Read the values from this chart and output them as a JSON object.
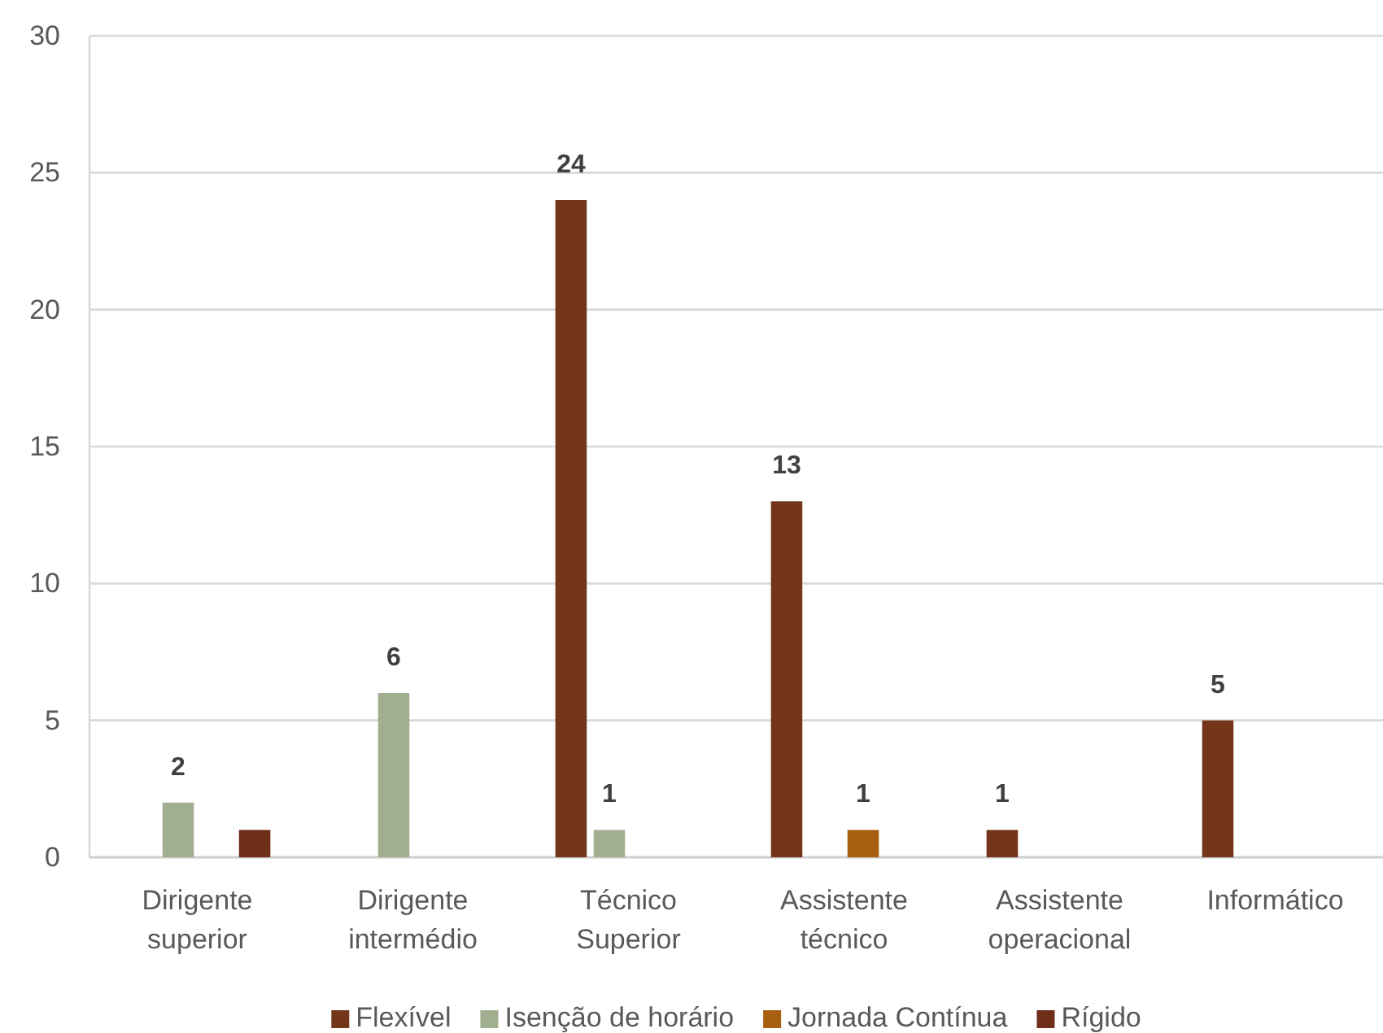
{
  "chart_data": {
    "type": "bar",
    "categories": [
      "Dirigente superior",
      "Dirigente intermédio",
      "Técnico Superior",
      "Assistente técnico",
      "Assistente operacional",
      "Informático"
    ],
    "series": [
      {
        "name": "Flexível",
        "color": "#73361a",
        "values": [
          null,
          null,
          24,
          13,
          1,
          5
        ],
        "value_labels": [
          null,
          null,
          "24",
          "13",
          "1",
          "5"
        ]
      },
      {
        "name": "Isenção de horário",
        "color": "#a1ae8f",
        "values": [
          2,
          6,
          1,
          null,
          null,
          null
        ],
        "value_labels": [
          "2",
          "6",
          "1",
          null,
          null,
          null
        ]
      },
      {
        "name": "Jornada Contínua",
        "color": "#a85f10",
        "values": [
          null,
          null,
          null,
          1,
          null,
          null
        ],
        "value_labels": [
          null,
          null,
          null,
          "1",
          null,
          null
        ]
      },
      {
        "name": "Rígido",
        "color": "#6e2e18",
        "values": [
          1,
          null,
          null,
          null,
          null,
          null
        ]
      }
    ],
    "ylim": [
      0,
      30
    ],
    "yticks": [
      0,
      5,
      10,
      15,
      20,
      25,
      30
    ],
    "grid": "y",
    "legend": "bottom"
  }
}
